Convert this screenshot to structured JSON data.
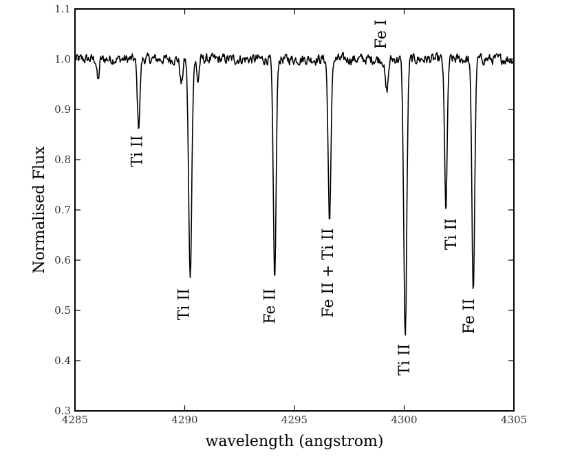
{
  "chart_data": {
    "type": "line",
    "xlabel": "wavelength (angstrom)",
    "ylabel": "Normalised Flux",
    "xlim": [
      4285,
      4305
    ],
    "ylim": [
      0.3,
      1.1
    ],
    "x_ticks": [
      "4285",
      "4290",
      "4295",
      "4300",
      "4305"
    ],
    "y_ticks": [
      "0.3",
      "0.4",
      "0.5",
      "0.6",
      "0.7",
      "0.8",
      "0.9",
      "1.0",
      "1.1"
    ],
    "grid": false,
    "continuum": 1.0,
    "line_color": "#000000",
    "absorption_lines": [
      {
        "label": "Ti II",
        "center": 4287.9,
        "min_flux": 0.865,
        "width": 0.06
      },
      {
        "label": "Ti II",
        "center": 4290.25,
        "min_flux": 0.56,
        "width": 0.07
      },
      {
        "label": "Fe II",
        "center": 4294.1,
        "min_flux": 0.56,
        "width": 0.065
      },
      {
        "label": "Fe II + Ti II",
        "center": 4296.6,
        "min_flux": 0.68,
        "width": 0.065
      },
      {
        "label": "Fe I",
        "center": 4299.2,
        "min_flux": 0.935,
        "width": 0.07
      },
      {
        "label": "Ti II",
        "center": 4300.05,
        "min_flux": 0.45,
        "width": 0.07
      },
      {
        "label": "Ti II",
        "center": 4301.9,
        "min_flux": 0.7,
        "width": 0.06
      },
      {
        "label": "Fe II",
        "center": 4303.15,
        "min_flux": 0.54,
        "width": 0.065
      }
    ],
    "weak_features": [
      {
        "center": 4286.05,
        "min_flux": 0.955,
        "width": 0.05
      },
      {
        "center": 4289.85,
        "min_flux": 0.95,
        "width": 0.06
      },
      {
        "center": 4290.6,
        "min_flux": 0.955,
        "width": 0.05
      }
    ]
  }
}
